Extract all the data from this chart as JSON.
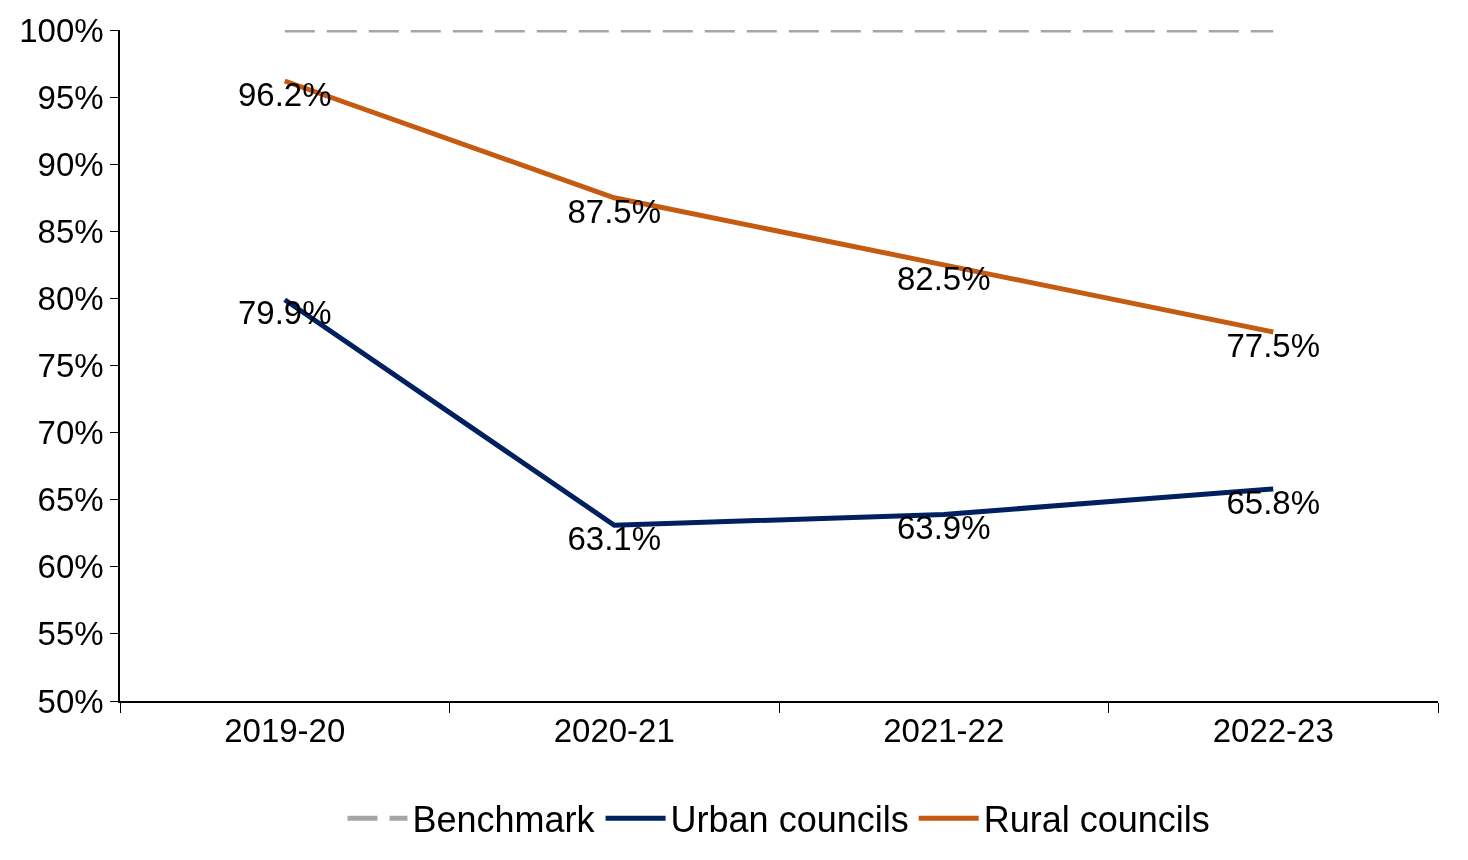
{
  "chart_data": {
    "type": "line",
    "categories": [
      "2019-20",
      "2020-21",
      "2021-22",
      "2022-23"
    ],
    "series": [
      {
        "name": "Benchmark",
        "color": "#a6a6a6",
        "values": [
          100,
          100,
          100,
          100
        ],
        "line_style": "dashed"
      },
      {
        "name": "Urban councils",
        "color": "#002060",
        "values": [
          79.9,
          63.1,
          63.9,
          65.8
        ],
        "value_labels": [
          "79.9%",
          "63.1%",
          "63.9%",
          "65.8%"
        ]
      },
      {
        "name": "Rural councils",
        "color": "#c55a11",
        "values": [
          96.2,
          87.5,
          82.5,
          77.5
        ],
        "value_labels": [
          "96.2%",
          "87.5%",
          "82.5%",
          "77.5%"
        ]
      }
    ],
    "ylim": [
      50,
      100
    ],
    "yticks": [
      {
        "value": 50,
        "label": "50%"
      },
      {
        "value": 55,
        "label": "55%"
      },
      {
        "value": 60,
        "label": "60%"
      },
      {
        "value": 65,
        "label": "65%"
      },
      {
        "value": 70,
        "label": "70%"
      },
      {
        "value": 75,
        "label": "75%"
      },
      {
        "value": 80,
        "label": "80%"
      },
      {
        "value": 85,
        "label": "85%"
      },
      {
        "value": 90,
        "label": "90%"
      },
      {
        "value": 95,
        "label": "95%"
      },
      {
        "value": 100,
        "label": "100%"
      }
    ],
    "grid": false,
    "legend": "bottom",
    "marker": "none",
    "line_style": "solid"
  }
}
